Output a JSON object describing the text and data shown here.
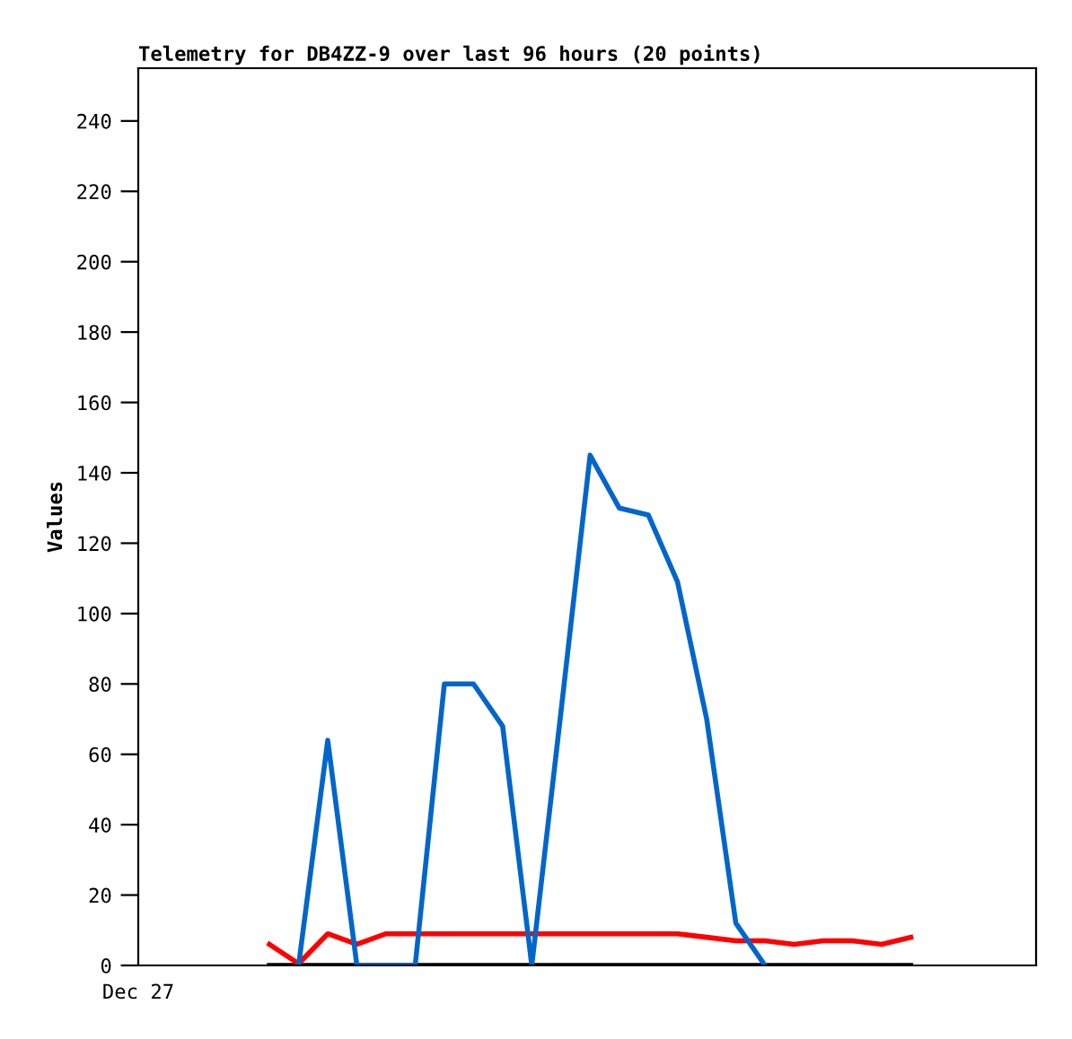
{
  "chart_data": {
    "type": "line",
    "title": "Telemetry for DB4ZZ-9 over last 96 hours (20 points)",
    "ylabel": "Values",
    "annotations": [
      "Dec 27"
    ],
    "categories": [
      null,
      null,
      null,
      null,
      null,
      null,
      null,
      null,
      null,
      null,
      null,
      null,
      null,
      null,
      null,
      null,
      null,
      null,
      null,
      null,
      null,
      null,
      null
    ],
    "ylim": [
      0,
      255
    ],
    "yticks": [
      0,
      20,
      40,
      60,
      80,
      100,
      120,
      140,
      160,
      180,
      200,
      220,
      240
    ],
    "grid": false,
    "legend": false,
    "marker": "none",
    "line_style": "solid",
    "series": [
      {
        "color": "#000000",
        "values": [
          0,
          0,
          0,
          0,
          0,
          0,
          0,
          0,
          0,
          0,
          0,
          0,
          0,
          0,
          0,
          0,
          0,
          0,
          0,
          0,
          0,
          0,
          0
        ]
      },
      {
        "color": "#ff0000",
        "values": [
          6,
          0.5,
          9,
          6,
          9,
          9,
          9,
          9,
          9,
          9,
          9,
          9,
          9,
          9,
          9,
          8,
          7,
          7,
          6,
          7,
          7,
          6,
          8
        ]
      },
      {
        "color": "#0066cc",
        "values": [
          null,
          0,
          64,
          0,
          0,
          0,
          80,
          80,
          68,
          0,
          72,
          145,
          130,
          128,
          109,
          70,
          12,
          0,
          null,
          null,
          null,
          null,
          null
        ]
      }
    ]
  }
}
